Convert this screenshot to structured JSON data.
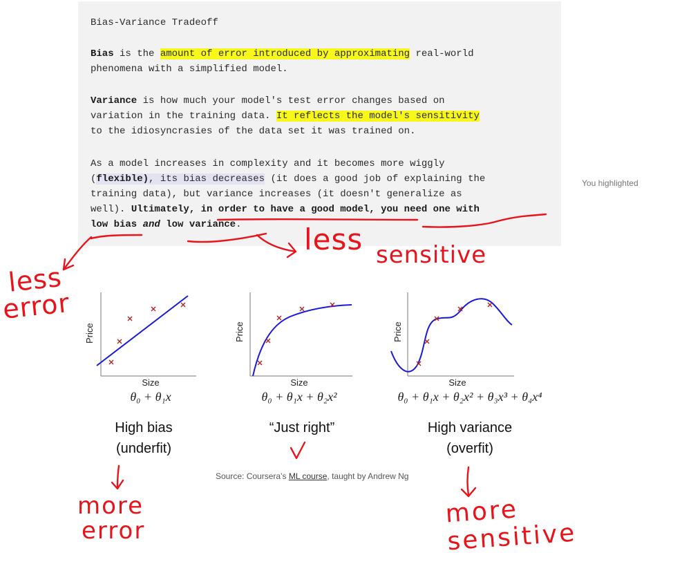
{
  "article": {
    "title": "Bias-Variance Tradeoff",
    "bias_term": "Bias",
    "bias_is": " is the ",
    "bias_highlight": "amount of error introduced by approximating",
    "bias_rest1": " real-world",
    "bias_rest2": "phenomena with a simplified model.",
    "variance_term": "Variance",
    "variance_line1_rest": " is how much your model's test error changes based on",
    "variance_line2_pre": "variation in the training data. ",
    "variance_highlight": "It reflects the model's sensitivity",
    "variance_line3": "to the idiosyncrasies of the data set it was trained on.",
    "p3_line1": "As a model increases in complexity and it becomes more wiggly",
    "p3_open": "(",
    "p3_flexible": "flexible)",
    "p3_bias_dec": ", its bias decreases",
    "p3_line2_rest": " (it does a good job of explaining the",
    "p3_line3": "training data), but variance increases (it doesn't generalize as",
    "p3_line4_pre": "well). ",
    "p3_line4_bold": "Ultimately, in order to have a good model, you need one with",
    "p3_line5_a": "low bias ",
    "p3_line5_and": "and",
    "p3_line5_b": " low variance",
    "p3_line5_end": "."
  },
  "side_note": "You highlighted",
  "figure": {
    "panels": [
      {
        "ylabel": "Price",
        "xlabel": "Size",
        "formula": "θ₀ + θ₁x",
        "caption1": "High bias",
        "caption2": "(underfit)"
      },
      {
        "ylabel": "Price",
        "xlabel": "Size",
        "formula": "θ₀ + θ₁x + θ₂x²",
        "caption1": "“Just right”",
        "caption2": ""
      },
      {
        "ylabel": "Price",
        "xlabel": "Size",
        "formula": "θ₀ + θ₁x + θ₂x² + θ₃x³ + θ₄x⁴",
        "caption1": "High variance",
        "caption2": "(overfit)"
      }
    ],
    "source_pre": "Source: Coursera’s ",
    "source_link": "ML course",
    "source_post": ", taught by Andrew Ng"
  },
  "handwriting": {
    "less_error_1": "less",
    "less_error_2": "error",
    "less_sensitive_1": "less",
    "less_sensitive_2": "sensitive",
    "more_error_1": "more",
    "more_error_2": "error",
    "more_sensitive_1": "more",
    "more_sensitive_2": "sensitive",
    "ink_color": "#e8141c",
    "highlight_color": "#f7f71a",
    "curve_color": "#1a1ad6",
    "point_color": "#b22222"
  }
}
